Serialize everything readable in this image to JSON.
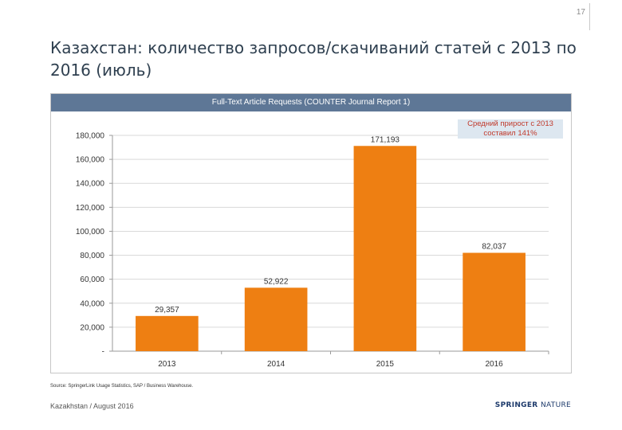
{
  "page": {
    "number": "17",
    "title": "Казахстан: количество запросов/скачиваний статей с 2013 по 2016 (июль)",
    "source": "Source: SpringerLink Usage Statistics, SAP / Business Warehouse.",
    "footer_left": "Kazakhstan / August 2016",
    "logo_part1": "SPRINGER",
    "logo_part2": "NATURE",
    "annotation": "Средний прирост с 2013 составил 141%"
  },
  "colors": {
    "bar": "#ee7f12",
    "header": "#5e7796",
    "grid": "#d9d9d9"
  },
  "chart_data": {
    "type": "bar",
    "title": "Full-Text Article Requests (COUNTER Journal Report 1)",
    "categories": [
      "2013",
      "2014",
      "2015",
      "2016"
    ],
    "values": [
      29357,
      52922,
      171193,
      82037
    ],
    "data_labels": [
      "29,357",
      "52,922",
      "171,193",
      "82,037"
    ],
    "ylim": [
      0,
      180000
    ],
    "yticks": [
      0,
      20000,
      40000,
      60000,
      80000,
      100000,
      120000,
      140000,
      160000,
      180000
    ],
    "ytick_labels": [
      "-",
      "20,000",
      "40,000",
      "60,000",
      "80,000",
      "100,000",
      "120,000",
      "140,000",
      "160,000",
      "180,000"
    ],
    "grid": true,
    "legend": "none"
  }
}
